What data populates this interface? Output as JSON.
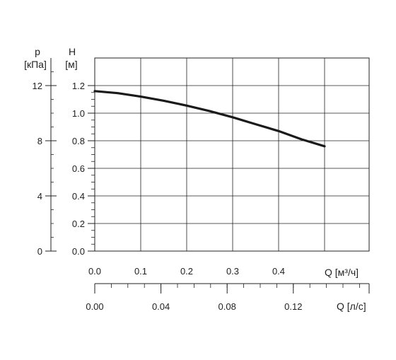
{
  "chart_data": {
    "type": "line",
    "series": [
      {
        "x": [
          0.0,
          0.05,
          0.1,
          0.15,
          0.2,
          0.25,
          0.3,
          0.35,
          0.4,
          0.45,
          0.5
        ],
        "y": [
          1.16,
          1.145,
          1.12,
          1.09,
          1.055,
          1.015,
          0.97,
          0.92,
          0.87,
          0.81,
          0.76
        ],
        "color": "#1a1a1a"
      }
    ],
    "h_axis": {
      "label_sym": "H",
      "label_unit": "[м]",
      "ticks": [
        "0.0",
        "0.2",
        "0.4",
        "0.6",
        "0.8",
        "1.0",
        "1.2"
      ],
      "range": [
        0,
        1.2
      ]
    },
    "p_axis": {
      "label_sym": "p",
      "label_unit": "[кПа]",
      "ticks": [
        "0",
        "4",
        "8",
        "12"
      ],
      "range": [
        0,
        12
      ]
    },
    "q_axis": {
      "label": "Q [м³/ч]",
      "ticks": [
        "0.0",
        "0.1",
        "0.2",
        "0.3",
        "0.4"
      ],
      "range": [
        0,
        0.6
      ]
    },
    "q_ls_axis": {
      "label": "Q [л/с]",
      "ticks": [
        "0.00",
        "0.04",
        "0.08",
        "0.12"
      ],
      "range": [
        0,
        0.167
      ]
    },
    "grid": true,
    "color_grid": "#222222"
  }
}
